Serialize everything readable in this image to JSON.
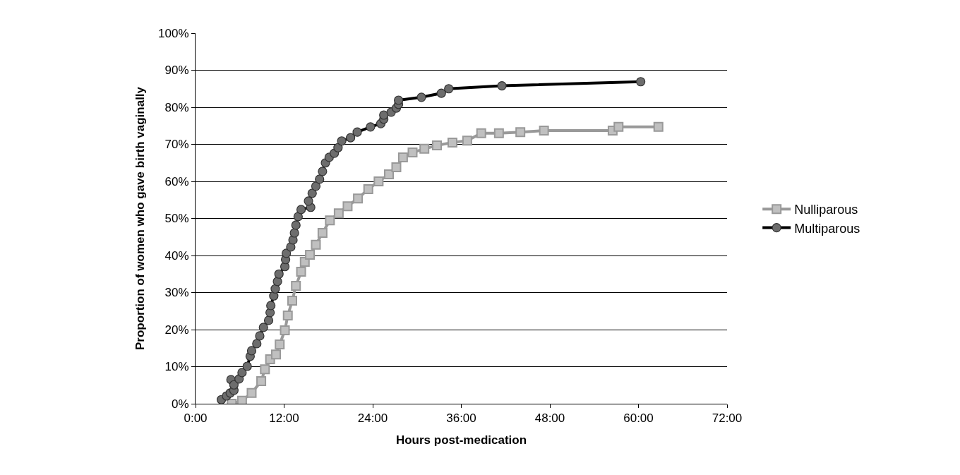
{
  "chart_data": {
    "type": "line",
    "xlabel": "Hours post-medication",
    "ylabel": "Proportion of women who gave birth vaginally",
    "xlim": [
      0,
      72
    ],
    "xticks": [
      {
        "value": 0,
        "label": "0:00"
      },
      {
        "value": 12,
        "label": "12:00"
      },
      {
        "value": 24,
        "label": "24:00"
      },
      {
        "value": 36,
        "label": "36:00"
      },
      {
        "value": 48,
        "label": "48:00"
      },
      {
        "value": 60,
        "label": "60:00"
      },
      {
        "value": 72,
        "label": "72:00"
      }
    ],
    "ylim": [
      0,
      100
    ],
    "yticks": [
      {
        "value": 0,
        "label": "0%"
      },
      {
        "value": 10,
        "label": "10%"
      },
      {
        "value": 20,
        "label": "20%"
      },
      {
        "value": 30,
        "label": "30%"
      },
      {
        "value": 40,
        "label": "40%"
      },
      {
        "value": 50,
        "label": "50%"
      },
      {
        "value": 60,
        "label": "60%"
      },
      {
        "value": 70,
        "label": "70%"
      },
      {
        "value": 80,
        "label": "80%"
      },
      {
        "value": 90,
        "label": "90%"
      },
      {
        "value": 100,
        "label": "100%"
      }
    ],
    "grid": "y",
    "legend": "right",
    "series": [
      {
        "name": "Nulliparous",
        "color": "#999999",
        "marker": "square",
        "x": [
          4.9,
          6.3,
          7.6,
          8.9,
          9.4,
          10.1,
          10.9,
          11.4,
          12.1,
          12.5,
          13.1,
          13.6,
          14.3,
          14.8,
          15.5,
          16.3,
          17.2,
          18.2,
          19.4,
          20.6,
          22.0,
          23.4,
          24.8,
          26.2,
          27.2,
          28.1,
          29.4,
          31.0,
          32.7,
          34.8,
          36.8,
          38.7,
          41.1,
          44.0,
          47.2,
          56.5,
          57.3,
          62.7
        ],
        "values": [
          0,
          0.8,
          2.9,
          6.1,
          9.3,
          12.0,
          13.3,
          16.0,
          19.8,
          23.8,
          27.8,
          31.8,
          35.6,
          38.3,
          40.2,
          42.9,
          46.1,
          49.5,
          51.4,
          53.3,
          55.4,
          57.9,
          60.0,
          61.9,
          63.8,
          66.5,
          67.8,
          68.8,
          69.7,
          70.5,
          71.0,
          73.0,
          73.0,
          73.3,
          73.7,
          73.7,
          74.7,
          74.7
        ]
      },
      {
        "name": "Multiparous",
        "color": "#000000",
        "marker": "circle",
        "x": [
          3.5,
          4.2,
          4.7,
          5.2,
          4.8,
          5.2,
          5.9,
          6.3,
          7.0,
          7.4,
          7.6,
          8.3,
          8.7,
          9.2,
          9.9,
          10.1,
          10.2,
          10.6,
          10.8,
          11.1,
          11.3,
          12.1,
          12.2,
          12.3,
          12.9,
          13.2,
          13.4,
          13.6,
          13.9,
          14.3,
          15.6,
          15.3,
          15.8,
          16.3,
          16.8,
          17.2,
          17.6,
          18.1,
          18.8,
          19.3,
          19.8,
          21.0,
          21.9,
          23.7,
          25.1,
          25.5,
          25.5,
          26.5,
          27.2,
          27.5,
          27.5,
          30.6,
          33.3,
          34.3,
          41.5,
          60.3
        ],
        "values": [
          1.1,
          2.1,
          2.9,
          3.6,
          6.5,
          5.1,
          6.7,
          8.4,
          10.1,
          12.8,
          14.3,
          16.2,
          18.3,
          20.6,
          22.5,
          24.6,
          26.5,
          29.1,
          31.0,
          33.0,
          35.0,
          37.0,
          38.9,
          40.6,
          42.3,
          44.2,
          46.1,
          48.2,
          50.5,
          52.4,
          53.0,
          54.7,
          56.8,
          58.7,
          60.6,
          62.7,
          65.0,
          66.5,
          67.6,
          69.1,
          70.9,
          71.8,
          73.3,
          74.7,
          75.6,
          76.8,
          77.9,
          78.7,
          79.8,
          80.8,
          81.9,
          82.7,
          83.8,
          85.0,
          85.8,
          86.9
        ]
      }
    ]
  }
}
